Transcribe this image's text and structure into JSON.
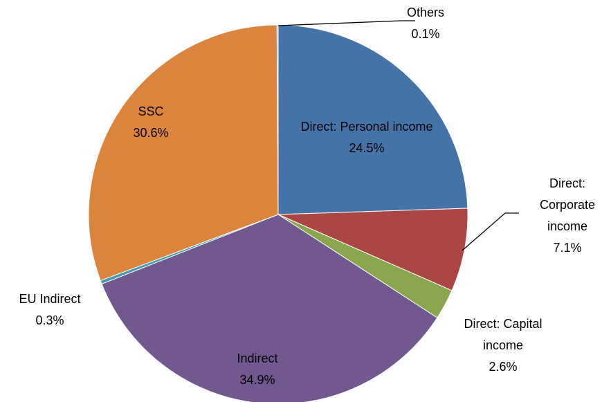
{
  "chart_data": {
    "type": "pie",
    "categories": [
      "Direct: Personal income",
      "Direct: Corporate income",
      "Direct: Capital income",
      "Indirect",
      "EU Indirect",
      "SSC",
      "Others"
    ],
    "values": [
      24.5,
      7.1,
      2.6,
      34.9,
      0.3,
      30.6,
      0.1
    ],
    "value_labels": [
      "24.5%",
      "7.1%",
      "2.6%",
      "34.9%",
      "0.3%",
      "30.6%",
      "0.1%"
    ],
    "colors": [
      "#4572a7",
      "#aa4643",
      "#89a54e",
      "#71588f",
      "#4198af",
      "#db843d",
      "#93a9cf"
    ]
  }
}
